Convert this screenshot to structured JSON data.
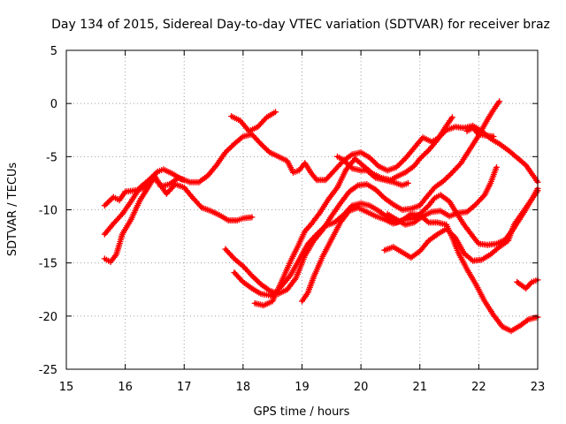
{
  "chart_data": {
    "type": "line",
    "title": "Day 134 of 2015, Sidereal Day-to-day VTEC variation (SDTVAR) for receiver braz",
    "xlabel": "GPS time / hours",
    "ylabel": "SDTVAR / TECUs",
    "xlim": [
      15,
      23
    ],
    "ylim": [
      -25,
      5
    ],
    "xticks": [
      15,
      16,
      17,
      18,
      19,
      20,
      21,
      22,
      23
    ],
    "yticks": [
      -25,
      -20,
      -15,
      -10,
      -5,
      0,
      5
    ],
    "xtick_labels": [
      "15",
      "16",
      "17",
      "18",
      "19",
      "20",
      "21",
      "22",
      "23"
    ],
    "ytick_labels": [
      "-25",
      "-20",
      "-15",
      "-10",
      "-5",
      "0",
      "5"
    ],
    "grid": true,
    "color": "#ff0000",
    "marker": "plus",
    "series": [
      {
        "name": "s1",
        "points": [
          [
            15.65,
            -9.6
          ],
          [
            15.8,
            -8.8
          ],
          [
            15.9,
            -9.1
          ],
          [
            16.0,
            -8.3
          ],
          [
            16.15,
            -8.2
          ],
          [
            16.3,
            -8.0
          ],
          [
            16.45,
            -7.1
          ],
          [
            16.55,
            -7.3
          ],
          [
            16.7,
            -8.5
          ],
          [
            16.85,
            -7.6
          ],
          [
            17.0,
            -7.9
          ],
          [
            17.15,
            -8.9
          ],
          [
            17.3,
            -9.8
          ],
          [
            17.45,
            -10.1
          ],
          [
            17.6,
            -10.5
          ],
          [
            17.75,
            -11.0
          ],
          [
            17.9,
            -11.0
          ],
          [
            18.0,
            -10.8
          ],
          [
            18.15,
            -10.7
          ]
        ]
      },
      {
        "name": "s2",
        "points": [
          [
            15.65,
            -12.3
          ],
          [
            15.8,
            -11.3
          ],
          [
            15.95,
            -10.4
          ],
          [
            16.1,
            -9.2
          ],
          [
            16.25,
            -7.9
          ],
          [
            16.4,
            -7.2
          ],
          [
            16.55,
            -6.4
          ],
          [
            16.65,
            -6.2
          ],
          [
            16.8,
            -6.6
          ],
          [
            16.95,
            -7.1
          ],
          [
            17.1,
            -7.4
          ],
          [
            17.25,
            -7.4
          ],
          [
            17.4,
            -6.8
          ],
          [
            17.55,
            -5.8
          ],
          [
            17.7,
            -4.6
          ],
          [
            17.85,
            -3.8
          ],
          [
            18.0,
            -3.1
          ],
          [
            18.15,
            -2.9
          ],
          [
            18.3,
            -3.8
          ],
          [
            18.45,
            -4.6
          ],
          [
            18.6,
            -5.0
          ],
          [
            18.75,
            -5.4
          ],
          [
            18.85,
            -6.5
          ],
          [
            18.95,
            -6.3
          ],
          [
            19.05,
            -5.6
          ],
          [
            19.15,
            -6.5
          ],
          [
            19.25,
            -7.2
          ],
          [
            19.4,
            -7.2
          ],
          [
            19.55,
            -6.3
          ],
          [
            19.7,
            -5.4
          ],
          [
            19.85,
            -4.8
          ],
          [
            20.0,
            -4.6
          ],
          [
            20.15,
            -5.1
          ],
          [
            20.3,
            -5.9
          ],
          [
            20.45,
            -6.3
          ],
          [
            20.6,
            -6.0
          ],
          [
            20.75,
            -5.2
          ],
          [
            20.9,
            -4.2
          ],
          [
            21.05,
            -3.2
          ],
          [
            21.2,
            -3.6
          ],
          [
            21.3,
            -3.3
          ],
          [
            21.45,
            -2.5
          ],
          [
            21.6,
            -2.2
          ],
          [
            21.75,
            -2.3
          ],
          [
            21.9,
            -2.1
          ],
          [
            22.05,
            -2.6
          ],
          [
            22.2,
            -3.3
          ],
          [
            22.35,
            -3.8
          ],
          [
            22.5,
            -4.4
          ],
          [
            22.65,
            -5.1
          ],
          [
            22.8,
            -5.8
          ],
          [
            22.9,
            -6.6
          ],
          [
            23.0,
            -7.4
          ]
        ]
      },
      {
        "name": "s3",
        "points": [
          [
            15.65,
            -14.6
          ],
          [
            15.75,
            -14.9
          ],
          [
            15.85,
            -14.2
          ],
          [
            15.95,
            -12.3
          ],
          [
            16.1,
            -10.9
          ],
          [
            16.25,
            -9.1
          ],
          [
            16.4,
            -7.8
          ],
          [
            16.5,
            -6.8
          ],
          [
            16.6,
            -7.8
          ],
          [
            16.75,
            -7.6
          ],
          [
            16.9,
            -7.0
          ],
          [
            17.0,
            -7.2
          ]
        ]
      },
      {
        "name": "s4",
        "points": [
          [
            17.8,
            -1.2
          ],
          [
            17.95,
            -1.6
          ],
          [
            18.1,
            -2.6
          ],
          [
            18.25,
            -2.2
          ],
          [
            18.4,
            -1.3
          ],
          [
            18.55,
            -0.8
          ]
        ]
      },
      {
        "name": "s5",
        "points": [
          [
            17.7,
            -13.7
          ],
          [
            17.85,
            -14.6
          ],
          [
            18.0,
            -15.3
          ],
          [
            18.15,
            -16.2
          ],
          [
            18.3,
            -17.0
          ],
          [
            18.45,
            -17.6
          ],
          [
            18.6,
            -17.9
          ],
          [
            18.75,
            -17.5
          ],
          [
            18.9,
            -16.4
          ],
          [
            19.05,
            -14.3
          ],
          [
            19.2,
            -12.9
          ],
          [
            19.35,
            -11.9
          ],
          [
            19.5,
            -10.6
          ],
          [
            19.65,
            -9.4
          ],
          [
            19.8,
            -8.3
          ],
          [
            19.95,
            -7.7
          ],
          [
            20.1,
            -7.6
          ],
          [
            20.25,
            -8.1
          ],
          [
            20.4,
            -8.9
          ],
          [
            20.55,
            -9.5
          ],
          [
            20.7,
            -10.0
          ],
          [
            20.85,
            -9.9
          ],
          [
            21.0,
            -9.6
          ],
          [
            21.1,
            -8.9
          ],
          [
            21.25,
            -7.9
          ],
          [
            21.4,
            -7.3
          ],
          [
            21.55,
            -6.5
          ],
          [
            21.7,
            -5.6
          ],
          [
            21.85,
            -4.3
          ],
          [
            22.0,
            -3.0
          ],
          [
            22.15,
            -1.5
          ],
          [
            22.25,
            -0.6
          ],
          [
            22.35,
            0.2
          ]
        ]
      },
      {
        "name": "s6",
        "points": [
          [
            17.85,
            -15.9
          ],
          [
            18.0,
            -16.8
          ],
          [
            18.15,
            -17.4
          ],
          [
            18.3,
            -17.9
          ],
          [
            18.5,
            -18.1
          ],
          [
            18.65,
            -17.2
          ],
          [
            18.8,
            -16.2
          ],
          [
            18.95,
            -14.7
          ],
          [
            19.1,
            -13.2
          ],
          [
            19.25,
            -12.3
          ],
          [
            19.4,
            -11.5
          ],
          [
            19.55,
            -11.2
          ],
          [
            19.7,
            -10.5
          ],
          [
            19.85,
            -9.6
          ],
          [
            20.0,
            -9.4
          ],
          [
            20.15,
            -9.6
          ],
          [
            20.3,
            -10.1
          ],
          [
            20.45,
            -10.7
          ],
          [
            20.6,
            -11.2
          ],
          [
            20.75,
            -10.9
          ],
          [
            20.9,
            -10.8
          ],
          [
            21.0,
            -10.4
          ],
          [
            21.15,
            -9.6
          ],
          [
            21.25,
            -8.9
          ],
          [
            21.35,
            -8.6
          ],
          [
            21.5,
            -9.2
          ],
          [
            21.6,
            -10.1
          ],
          [
            21.75,
            -11.4
          ],
          [
            21.9,
            -12.5
          ],
          [
            22.0,
            -13.2
          ],
          [
            22.15,
            -13.3
          ],
          [
            22.3,
            -13.2
          ],
          [
            22.45,
            -12.8
          ],
          [
            22.6,
            -11.7
          ],
          [
            22.75,
            -10.4
          ],
          [
            22.9,
            -9.0
          ],
          [
            23.0,
            -8.0
          ]
        ]
      },
      {
        "name": "s7",
        "points": [
          [
            18.2,
            -18.8
          ],
          [
            18.35,
            -19.0
          ],
          [
            18.5,
            -18.6
          ],
          [
            18.65,
            -16.8
          ],
          [
            18.8,
            -14.9
          ],
          [
            18.95,
            -13.2
          ],
          [
            19.05,
            -12.0
          ],
          [
            19.15,
            -11.4
          ],
          [
            19.3,
            -10.3
          ],
          [
            19.45,
            -9.0
          ],
          [
            19.6,
            -7.9
          ],
          [
            19.75,
            -6.2
          ],
          [
            19.9,
            -5.2
          ],
          [
            20.05,
            -5.9
          ],
          [
            20.2,
            -6.6
          ],
          [
            20.35,
            -7.0
          ],
          [
            20.5,
            -7.2
          ],
          [
            20.6,
            -6.9
          ],
          [
            20.75,
            -6.5
          ],
          [
            20.9,
            -5.9
          ],
          [
            21.0,
            -5.2
          ],
          [
            21.15,
            -4.4
          ],
          [
            21.3,
            -3.4
          ],
          [
            21.45,
            -2.1
          ],
          [
            21.55,
            -1.3
          ]
        ]
      },
      {
        "name": "s8",
        "points": [
          [
            19.0,
            -18.6
          ],
          [
            19.1,
            -17.8
          ],
          [
            19.2,
            -16.3
          ],
          [
            19.35,
            -14.4
          ],
          [
            19.5,
            -12.8
          ],
          [
            19.65,
            -11.2
          ],
          [
            19.8,
            -10.1
          ],
          [
            19.95,
            -9.8
          ],
          [
            20.1,
            -10.2
          ],
          [
            20.25,
            -10.6
          ],
          [
            20.4,
            -10.9
          ],
          [
            20.55,
            -11.3
          ],
          [
            20.7,
            -11.0
          ],
          [
            20.85,
            -10.4
          ],
          [
            21.0,
            -10.5
          ],
          [
            21.15,
            -11.2
          ],
          [
            21.3,
            -11.2
          ],
          [
            21.45,
            -11.4
          ],
          [
            21.55,
            -12.6
          ],
          [
            21.65,
            -14.0
          ],
          [
            21.8,
            -15.6
          ],
          [
            21.95,
            -17.0
          ],
          [
            22.1,
            -18.6
          ],
          [
            22.25,
            -19.9
          ],
          [
            22.4,
            -21.0
          ],
          [
            22.55,
            -21.4
          ],
          [
            22.7,
            -20.9
          ],
          [
            22.85,
            -20.3
          ],
          [
            23.0,
            -20.1
          ]
        ]
      },
      {
        "name": "s9",
        "points": [
          [
            19.6,
            -5.0
          ],
          [
            19.7,
            -5.3
          ],
          [
            19.85,
            -6.1
          ],
          [
            20.0,
            -6.3
          ],
          [
            20.1,
            -6.3
          ],
          [
            20.25,
            -7.0
          ],
          [
            20.4,
            -7.2
          ],
          [
            20.55,
            -7.4
          ],
          [
            20.7,
            -7.7
          ],
          [
            20.8,
            -7.5
          ]
        ]
      },
      {
        "name": "s10",
        "points": [
          [
            20.4,
            -13.8
          ],
          [
            20.55,
            -13.5
          ],
          [
            20.7,
            -14.0
          ],
          [
            20.85,
            -14.5
          ],
          [
            21.0,
            -13.9
          ],
          [
            21.15,
            -12.9
          ],
          [
            21.3,
            -12.3
          ],
          [
            21.45,
            -11.8
          ],
          [
            21.6,
            -12.6
          ],
          [
            21.75,
            -14.1
          ],
          [
            21.9,
            -14.8
          ],
          [
            22.05,
            -14.7
          ],
          [
            22.2,
            -14.2
          ],
          [
            22.35,
            -13.5
          ],
          [
            22.5,
            -12.9
          ],
          [
            22.6,
            -11.4
          ],
          [
            22.75,
            -10.2
          ],
          [
            22.9,
            -9.0
          ],
          [
            23.0,
            -8.2
          ]
        ]
      },
      {
        "name": "s11",
        "points": [
          [
            20.45,
            -10.4
          ],
          [
            20.6,
            -10.9
          ],
          [
            20.75,
            -11.4
          ],
          [
            20.9,
            -11.2
          ],
          [
            21.05,
            -10.6
          ],
          [
            21.2,
            -10.2
          ],
          [
            21.35,
            -10.1
          ],
          [
            21.5,
            -10.6
          ],
          [
            21.65,
            -10.3
          ],
          [
            21.8,
            -10.2
          ],
          [
            21.95,
            -9.5
          ],
          [
            22.1,
            -8.6
          ],
          [
            22.2,
            -7.5
          ],
          [
            22.3,
            -6.0
          ]
        ]
      },
      {
        "name": "s12",
        "points": [
          [
            21.8,
            -2.6
          ],
          [
            21.9,
            -2.3
          ],
          [
            22.0,
            -2.9
          ],
          [
            22.1,
            -3.0
          ],
          [
            22.25,
            -3.1
          ]
        ]
      },
      {
        "name": "s13",
        "points": [
          [
            22.65,
            -16.8
          ],
          [
            22.8,
            -17.4
          ],
          [
            22.9,
            -16.8
          ],
          [
            23.0,
            -16.6
          ]
        ]
      }
    ]
  }
}
